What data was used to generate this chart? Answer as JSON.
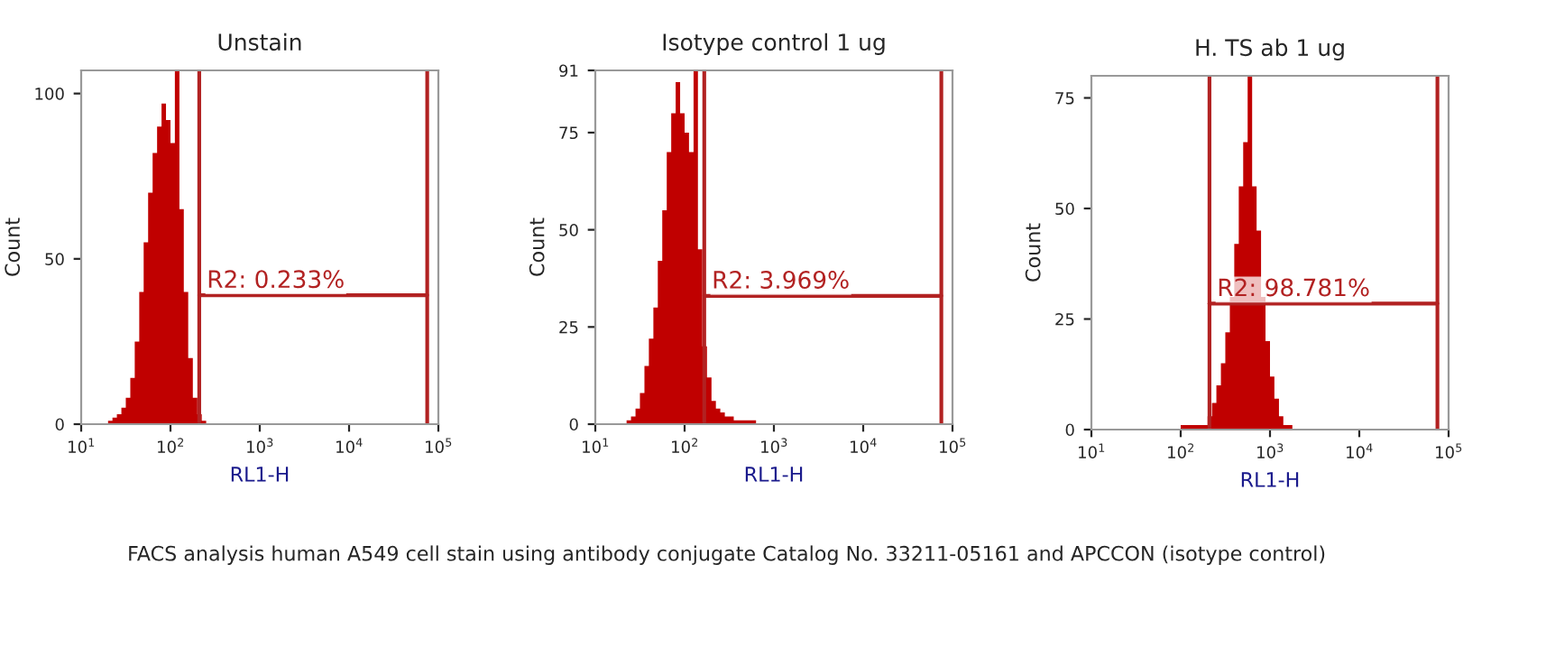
{
  "chart_data": [
    {
      "type": "histogram",
      "title": "Unstain",
      "xlabel": "RL1-H",
      "ylabel": "Count",
      "log": "x",
      "xlim": [
        10,
        100000
      ],
      "xticks": [
        {
          "value": 10,
          "label": "10$^{1}$"
        },
        {
          "value": 100,
          "label": "10$^{2}$"
        },
        {
          "value": 1000,
          "label": "10$^{3}$"
        },
        {
          "value": 10000,
          "label": "10$^{4}$"
        },
        {
          "value": 100000,
          "label": "10$^{5}$"
        }
      ],
      "ylim": [
        0,
        107
      ],
      "yticks": [
        0,
        50,
        100
      ],
      "grid": false,
      "legend": false,
      "bins": [
        20.0,
        22.4,
        25.1,
        28.2,
        31.6,
        35.5,
        39.8,
        44.7,
        50.1,
        56.2,
        63.1,
        70.8,
        79.4,
        89.1,
        100,
        112,
        126,
        141,
        158,
        178,
        200,
        224,
        251
      ],
      "series": [
        {
          "color": "#c00000",
          "values": [
            1,
            2,
            3,
            5,
            8,
            14,
            25,
            40,
            55,
            70,
            82,
            90,
            97,
            92,
            85,
            107,
            65,
            40,
            20,
            8,
            3,
            1
          ]
        },
        {
          "type": "line",
          "name": "R2: 0.233%",
          "color": "#b22222",
          "x": [
            210,
            75000
          ],
          "values": [
            39,
            39
          ]
        }
      ],
      "ref_lines": [
        {
          "axis": "x",
          "value": 210,
          "color": "#b22222"
        },
        {
          "axis": "x",
          "value": 75000,
          "color": "#b22222"
        }
      ],
      "annotations": [
        "FACS analysis human A549 cell stain using antibody conjugate Catalog No. 33211-05161 and APCCON (isotype control)"
      ]
    },
    {
      "type": "histogram",
      "title": "Isotype control 1 ug",
      "xlabel": "RL1-H",
      "ylabel": "Count",
      "log": "x",
      "xlim": [
        10,
        100000
      ],
      "xticks": [
        {
          "value": 10,
          "label": "10$^{1}$"
        },
        {
          "value": 100,
          "label": "10$^{2}$"
        },
        {
          "value": 1000,
          "label": "10$^{3}$"
        },
        {
          "value": 10000,
          "label": "10$^{4}$"
        },
        {
          "value": 100000,
          "label": "10$^{5}$"
        }
      ],
      "ylim": [
        0,
        91
      ],
      "yticks": [
        0,
        25,
        50,
        75,
        91
      ],
      "grid": false,
      "legend": false,
      "bins": [
        22.4,
        25.1,
        28.2,
        31.6,
        35.5,
        39.8,
        44.7,
        50.1,
        56.2,
        63.1,
        70.8,
        79.4,
        89.1,
        100,
        112,
        126,
        141,
        158,
        178,
        200,
        224,
        251,
        282,
        316,
        355,
        398,
        447,
        501,
        562,
        631
      ],
      "series": [
        {
          "color": "#c00000",
          "values": [
            1,
            2,
            4,
            8,
            15,
            22,
            30,
            42,
            55,
            70,
            80,
            88,
            80,
            75,
            70,
            91,
            45,
            20,
            12,
            6,
            4,
            3,
            2,
            2,
            1,
            1,
            1,
            1,
            1
          ]
        },
        {
          "type": "line",
          "name": "R2: 3.969%",
          "color": "#b22222",
          "x": [
            166,
            75000
          ],
          "values": [
            33,
            33
          ]
        }
      ],
      "ref_lines": [
        {
          "axis": "x",
          "value": 166,
          "color": "#b22222"
        },
        {
          "axis": "x",
          "value": 75000,
          "color": "#b22222"
        }
      ]
    },
    {
      "type": "histogram",
      "title": "H. TS ab 1 ug",
      "xlabel": "RL1-H",
      "ylabel": "Count",
      "log": "x",
      "xlim": [
        10,
        100000
      ],
      "xticks": [
        {
          "value": 10,
          "label": "10$^{1}$"
        },
        {
          "value": 100,
          "label": "10$^{2}$"
        },
        {
          "value": 1000,
          "label": "10$^{3}$"
        },
        {
          "value": 10000,
          "label": "10$^{4}$"
        },
        {
          "value": 100000,
          "label": "10$^{5}$"
        }
      ],
      "ylim": [
        0,
        80
      ],
      "yticks": [
        0,
        25,
        50,
        75
      ],
      "grid": false,
      "legend": false,
      "bins": [
        100,
        112,
        126,
        141,
        158,
        178,
        200,
        224,
        251,
        282,
        316,
        355,
        398,
        447,
        501,
        562,
        631,
        708,
        794,
        891,
        1000,
        1120,
        1260,
        1410,
        1580,
        1780
      ],
      "series": [
        {
          "color": "#c00000",
          "values": [
            1,
            1,
            1,
            1,
            1,
            1,
            3,
            6,
            10,
            15,
            22,
            30,
            42,
            55,
            65,
            80,
            55,
            45,
            30,
            20,
            12,
            7,
            3,
            1,
            1
          ]
        },
        {
          "type": "line",
          "name": "R2: 98.781%",
          "color": "#b22222",
          "x": [
            210,
            75000
          ],
          "values": [
            28.5,
            28.5
          ]
        }
      ],
      "ref_lines": [
        {
          "axis": "x",
          "value": 210,
          "color": "#b22222"
        },
        {
          "axis": "x",
          "value": 75000,
          "color": "#b22222"
        }
      ]
    }
  ]
}
